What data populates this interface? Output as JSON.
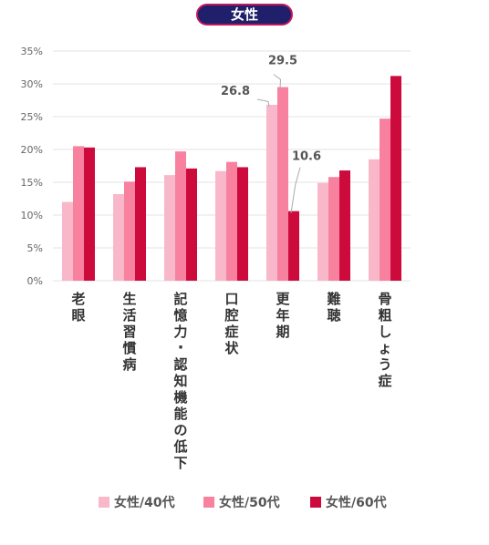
{
  "chart_data": {
    "type": "bar",
    "title": "女性",
    "categories": [
      "老眼",
      "生活習慣病",
      "記憶力・認知機能の低下",
      "口腔症状",
      "更年期",
      "難聴",
      "骨粗しょう症"
    ],
    "series": [
      {
        "name": "女性/40代",
        "color": "#f9b8c9",
        "values": [
          12.0,
          13.2,
          16.1,
          16.7,
          26.8,
          14.9,
          18.5
        ]
      },
      {
        "name": "女性/50代",
        "color": "#f7819f",
        "values": [
          20.5,
          15.1,
          19.7,
          18.1,
          29.5,
          15.8,
          24.7
        ]
      },
      {
        "name": "女性/60代",
        "color": "#cc0a3c",
        "values": [
          20.3,
          17.3,
          17.1,
          17.3,
          10.6,
          16.8,
          31.2
        ]
      }
    ],
    "ylim": [
      0,
      35
    ],
    "yticks": [
      "0%",
      "5%",
      "10%",
      "15%",
      "20%",
      "25%",
      "30%",
      "35%"
    ],
    "ytick_values": [
      0,
      5,
      10,
      15,
      20,
      25,
      30,
      35
    ],
    "annotations": [
      {
        "category": "更年期",
        "series": "女性/40代",
        "text": "26.8"
      },
      {
        "category": "更年期",
        "series": "女性/50代",
        "text": "29.5"
      },
      {
        "category": "更年期",
        "series": "女性/60代",
        "text": "10.6"
      }
    ],
    "grid": true,
    "legend_position": "bottom",
    "xlabel": "",
    "ylabel": ""
  }
}
